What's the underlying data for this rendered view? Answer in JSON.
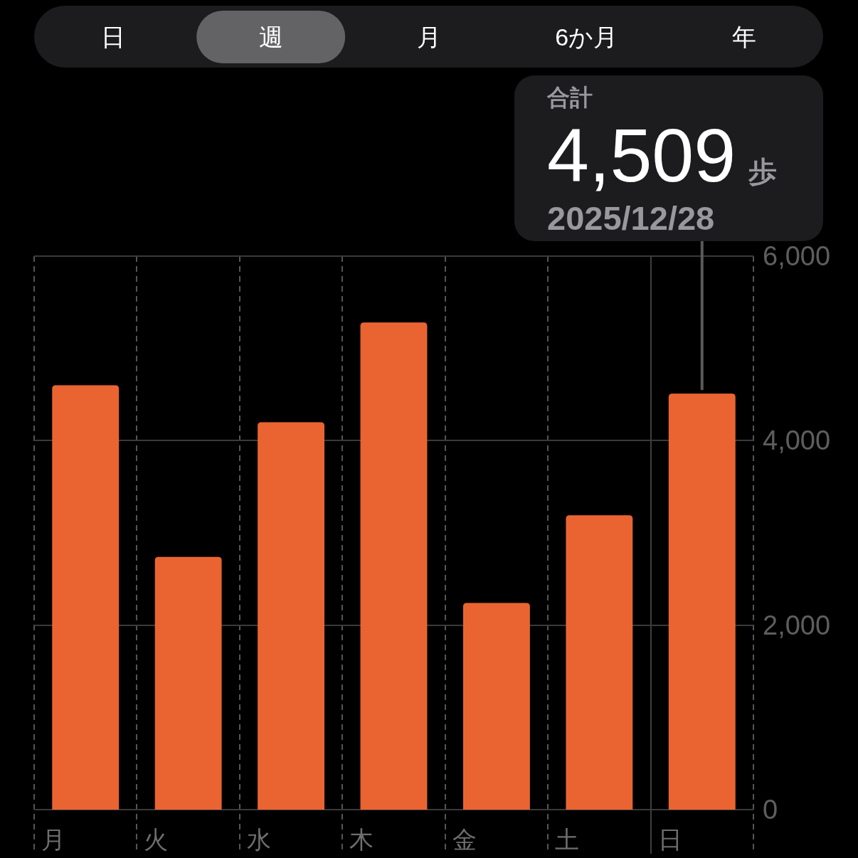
{
  "chart_data": {
    "type": "bar",
    "categories": [
      "月",
      "火",
      "水",
      "木",
      "金",
      "土",
      "日"
    ],
    "values": [
      4600,
      2740,
      4200,
      5280,
      2240,
      3190,
      4509
    ],
    "color": "#ea6432",
    "ylim": [
      0,
      6000
    ],
    "yticks": [
      0,
      {
        "value": 2000,
        "label": "2,000"
      },
      {
        "value": 4000,
        "label": "4,000"
      },
      {
        "value": 6000,
        "label": "6,000"
      }
    ],
    "grid": true,
    "ref_lines": [
      {
        "axis": "x",
        "value": "日",
        "color": "#3e3e3e",
        "line_style": "solid"
      }
    ],
    "annotations": [
      "日",
      "週",
      "月",
      "6か月",
      "年",
      "合計",
      {
        "text": "4,509",
        "x": "日",
        "y": 4509
      },
      "歩",
      "2025/12/28"
    ]
  }
}
